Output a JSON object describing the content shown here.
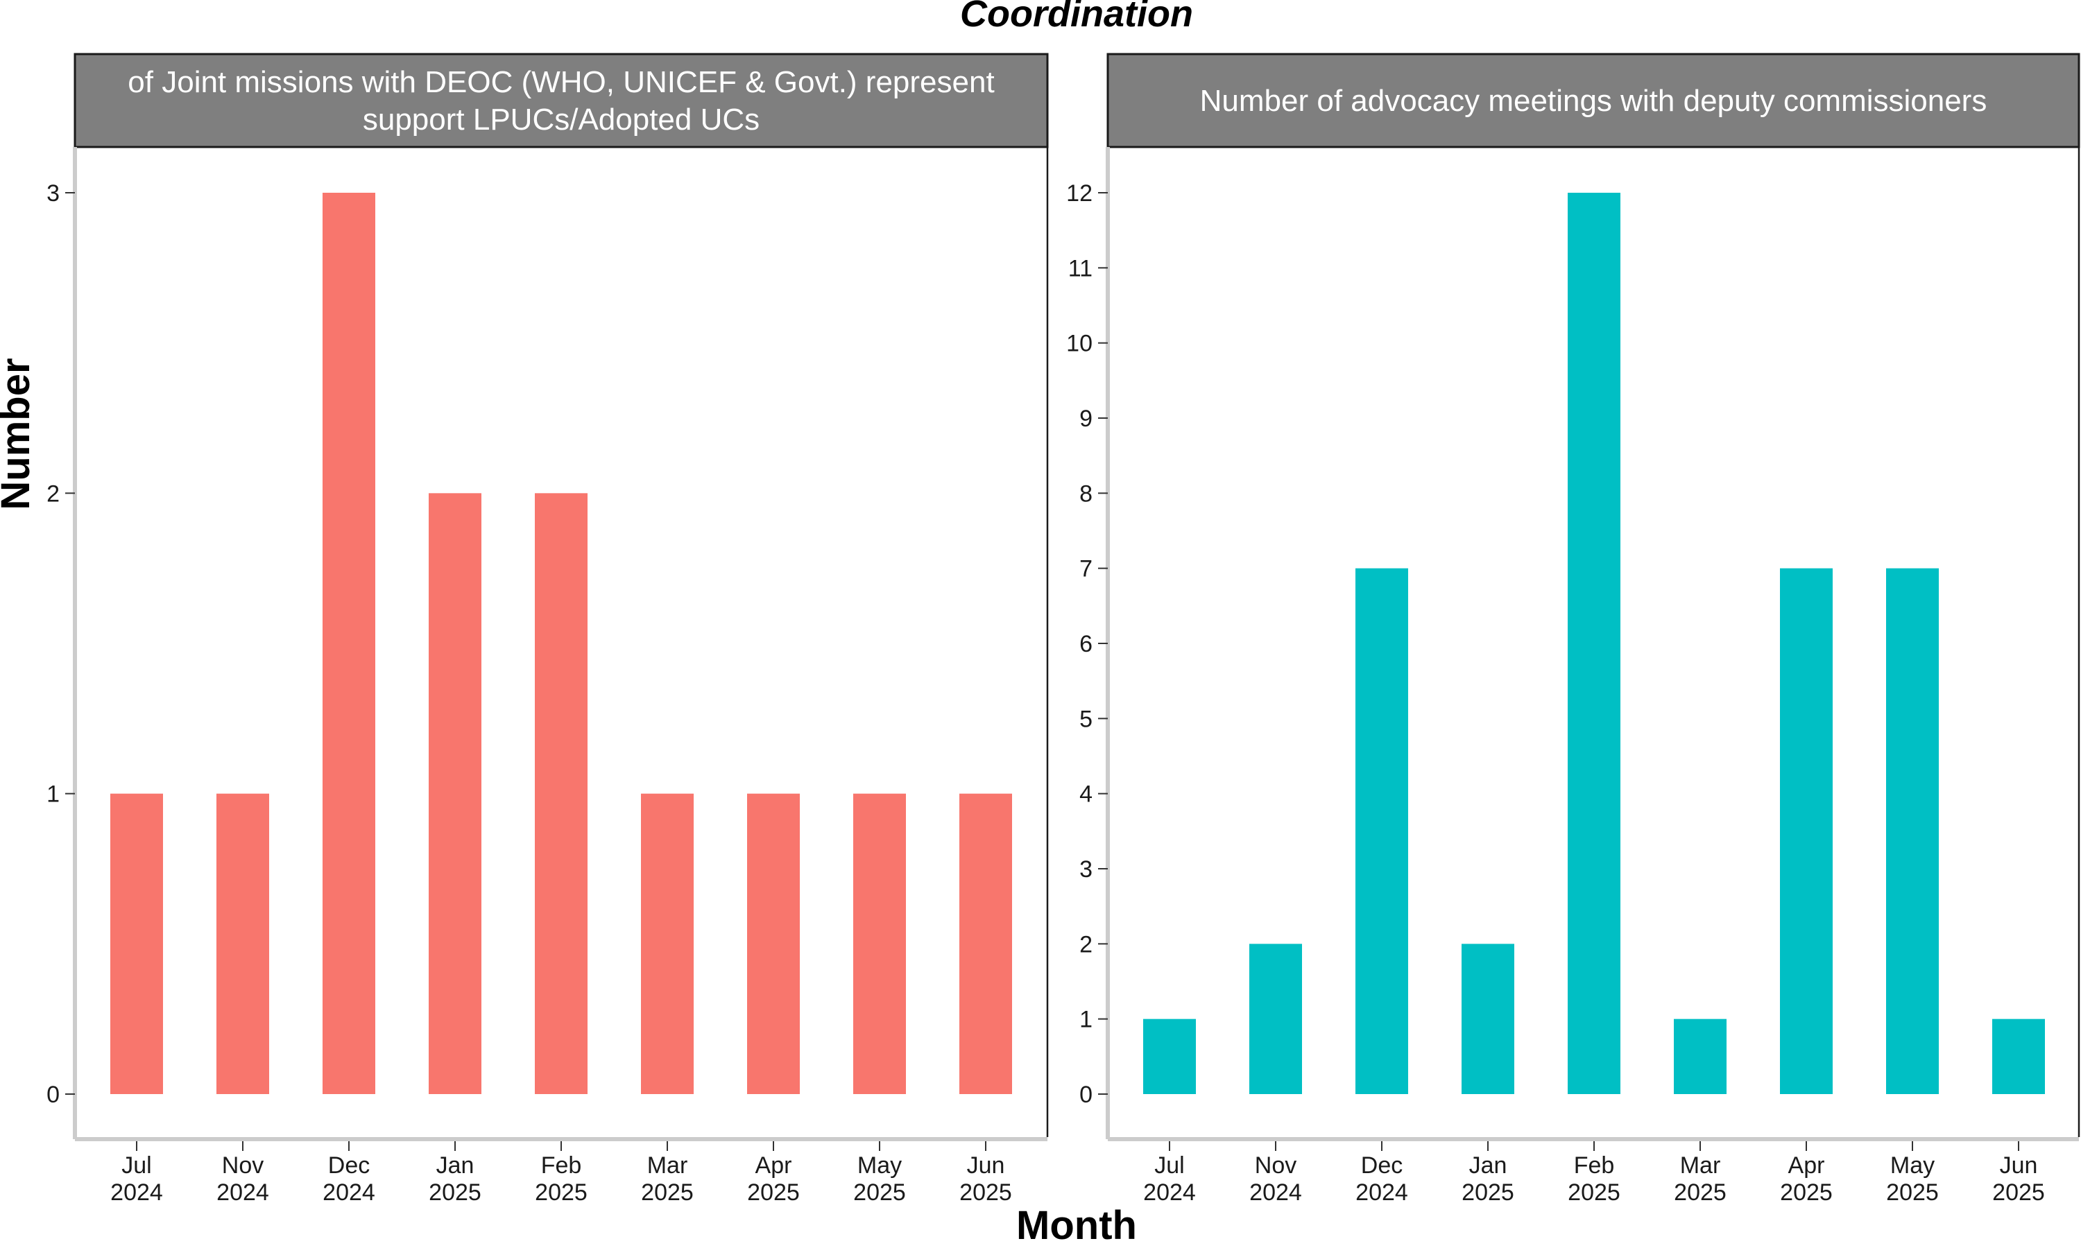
{
  "chart_data": {
    "type": "bar",
    "title": "Coordination",
    "xlabel": "Month",
    "ylabel": "Number",
    "categories": [
      [
        "Jul",
        "2024"
      ],
      [
        "Nov",
        "2024"
      ],
      [
        "Dec",
        "2024"
      ],
      [
        "Jan",
        "2025"
      ],
      [
        "Feb",
        "2025"
      ],
      [
        "Mar",
        "2025"
      ],
      [
        "Apr",
        "2025"
      ],
      [
        "May",
        "2025"
      ],
      [
        "Jun",
        "2025"
      ]
    ],
    "facets": [
      {
        "strip_lines": [
          "of Joint missions with DEOC (WHO, UNICEF & Govt.) represent",
          "support LPUCs/Adopted UCs"
        ],
        "color": "#F8766D",
        "values": [
          1,
          1,
          3,
          2,
          2,
          1,
          1,
          1,
          1
        ],
        "ylim": [
          0,
          3
        ],
        "yticks": [
          0,
          1,
          2,
          3
        ]
      },
      {
        "strip_lines": [
          "Number of advocacy meetings with deputy commissioners"
        ],
        "color": "#00BFC4",
        "values": [
          1,
          2,
          7,
          2,
          12,
          1,
          7,
          7,
          1
        ],
        "ylim": [
          0,
          12
        ],
        "yticks": [
          0,
          1,
          2,
          3,
          4,
          5,
          6,
          7,
          8,
          9,
          10,
          11,
          12
        ]
      }
    ],
    "grid": false,
    "legend": "none"
  }
}
